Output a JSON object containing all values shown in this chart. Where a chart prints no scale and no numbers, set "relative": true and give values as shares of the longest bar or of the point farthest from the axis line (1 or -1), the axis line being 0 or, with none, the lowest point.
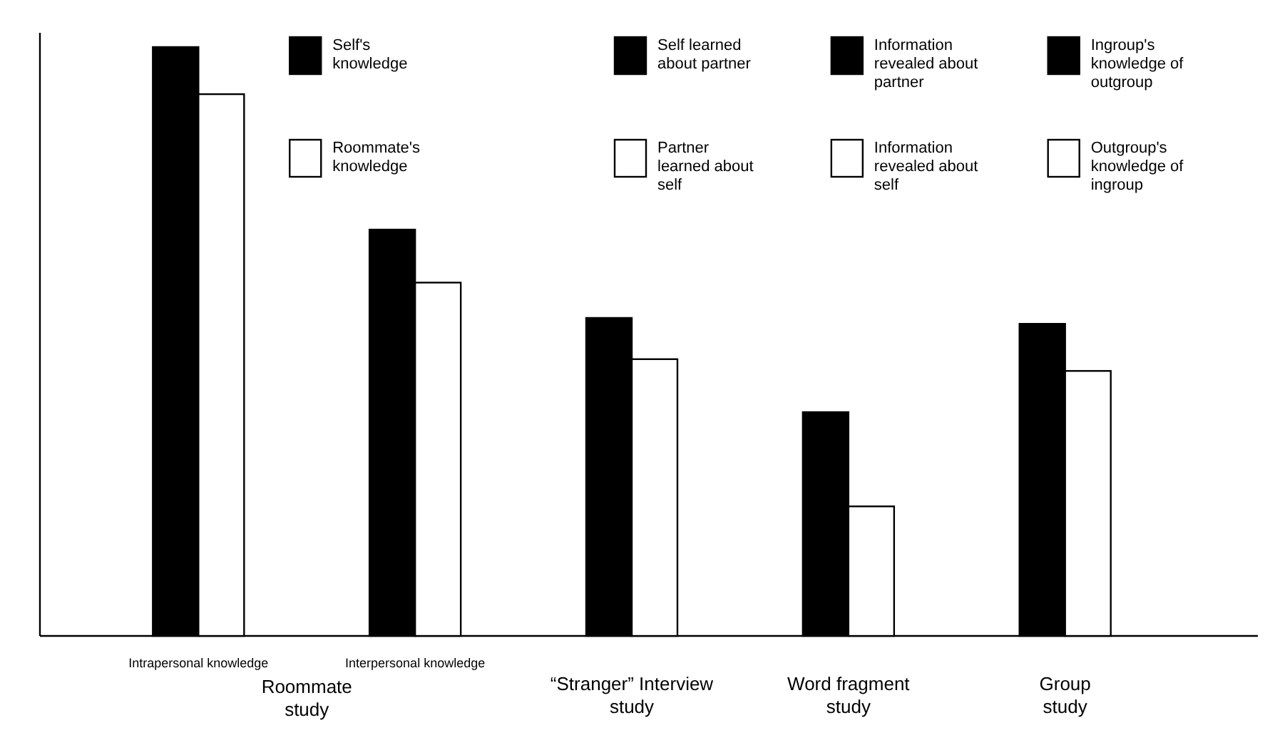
{
  "chart_data": {
    "type": "bar",
    "relative": true,
    "legend": "top",
    "categories": [
      "Intrapersonal knowledge",
      "Interpersonal knowledge",
      "“Stranger” Interview study",
      "Word fragment study",
      "Group study"
    ],
    "annotations": [
      "Roommate study"
    ],
    "series": [
      {
        "name": "Self's knowledge",
        "color": "#000000",
        "values": [
          1,
          0.69,
          null,
          null,
          null
        ]
      },
      {
        "name": "Roommate's knowledge",
        "color": "#ffffff",
        "values": [
          0.92,
          0.6,
          null,
          null,
          null
        ]
      },
      {
        "name": "Self learned about partner",
        "color": "#000000",
        "values": [
          null,
          null,
          0.54,
          null,
          null
        ]
      },
      {
        "name": "Partner learned about self",
        "color": "#ffffff",
        "values": [
          null,
          null,
          0.47,
          null,
          null
        ]
      },
      {
        "name": "Information revealed about partner",
        "color": "#000000",
        "values": [
          null,
          null,
          null,
          0.38,
          null
        ]
      },
      {
        "name": "Information revealed about self",
        "color": "#ffffff",
        "values": [
          null,
          null,
          null,
          0.22,
          null
        ]
      },
      {
        "name": "Ingroup's knowledge of outgroup",
        "color": "#000000",
        "values": [
          null,
          null,
          null,
          null,
          0.53
        ]
      },
      {
        "name": "Outgroup's knowledge of ingroup",
        "color": "#ffffff",
        "values": [
          null,
          null,
          null,
          null,
          0.45
        ]
      }
    ]
  }
}
